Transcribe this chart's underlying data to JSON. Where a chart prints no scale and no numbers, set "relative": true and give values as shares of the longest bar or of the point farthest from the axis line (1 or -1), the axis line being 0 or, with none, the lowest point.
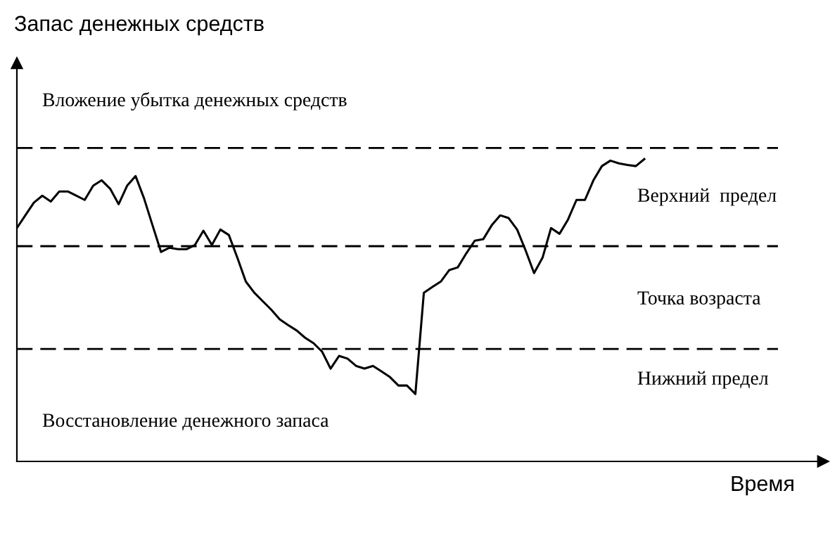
{
  "chart_data": {
    "type": "line",
    "relative": true,
    "xlabel": "Время",
    "categories": [
      null,
      null,
      null,
      null,
      null,
      null,
      null,
      null,
      null,
      null,
      null,
      null,
      null,
      null,
      null,
      null,
      null,
      null,
      null,
      null,
      null,
      null,
      null,
      null,
      null,
      null,
      null,
      null,
      null,
      null,
      null,
      null,
      null,
      null,
      null,
      null,
      null,
      null,
      null,
      null,
      null,
      null,
      null,
      null,
      null,
      null,
      null,
      null,
      null,
      null,
      null,
      null,
      null,
      null,
      null,
      null,
      null,
      null,
      null,
      null,
      null,
      null,
      null,
      null,
      null,
      null,
      null,
      null,
      null,
      null,
      null,
      null,
      null,
      null,
      null
    ],
    "series": [
      {
        "color": "#000000",
        "values": [
          0.772,
          0.814,
          0.856,
          0.879,
          0.86,
          0.893,
          0.893,
          0.879,
          0.865,
          0.912,
          0.93,
          0.902,
          0.851,
          0.912,
          0.944,
          0.87,
          0.781,
          0.693,
          0.707,
          0.702,
          0.702,
          0.716,
          0.763,
          0.716,
          0.767,
          0.749,
          0.674,
          0.595,
          0.558,
          0.53,
          0.502,
          0.47,
          0.451,
          0.433,
          0.409,
          0.391,
          0.363,
          0.307,
          0.349,
          0.34,
          0.316,
          0.307,
          0.316,
          0.298,
          0.279,
          0.251,
          0.251,
          0.223,
          0.558,
          0.577,
          0.595,
          0.633,
          0.642,
          0.688,
          0.73,
          0.735,
          0.781,
          0.814,
          0.805,
          0.767,
          0.698,
          0.623,
          0.674,
          0.772,
          0.753,
          0.8,
          0.865,
          0.865,
          0.93,
          0.977,
          0.995,
          0.986,
          0.981,
          0.977,
          1
        ]
      }
    ],
    "ref_lines": [
      {
        "axis": "y",
        "value": 1.037,
        "color": "#000000",
        "line_style": "dashed"
      },
      {
        "axis": "y",
        "value": 0.712,
        "color": "#000000",
        "line_style": "dashed"
      },
      {
        "axis": "y",
        "value": 0.372,
        "color": "#000000",
        "line_style": "dashed"
      }
    ],
    "annotations": [
      "Запас денежных средств",
      "Вложение убытка денежных средств",
      "Верхний  предел",
      "Точка возраста",
      "Нижний предел",
      "Восстановление денежного запаса"
    ],
    "legend": false,
    "line_style": "solid",
    "marker": "none"
  }
}
